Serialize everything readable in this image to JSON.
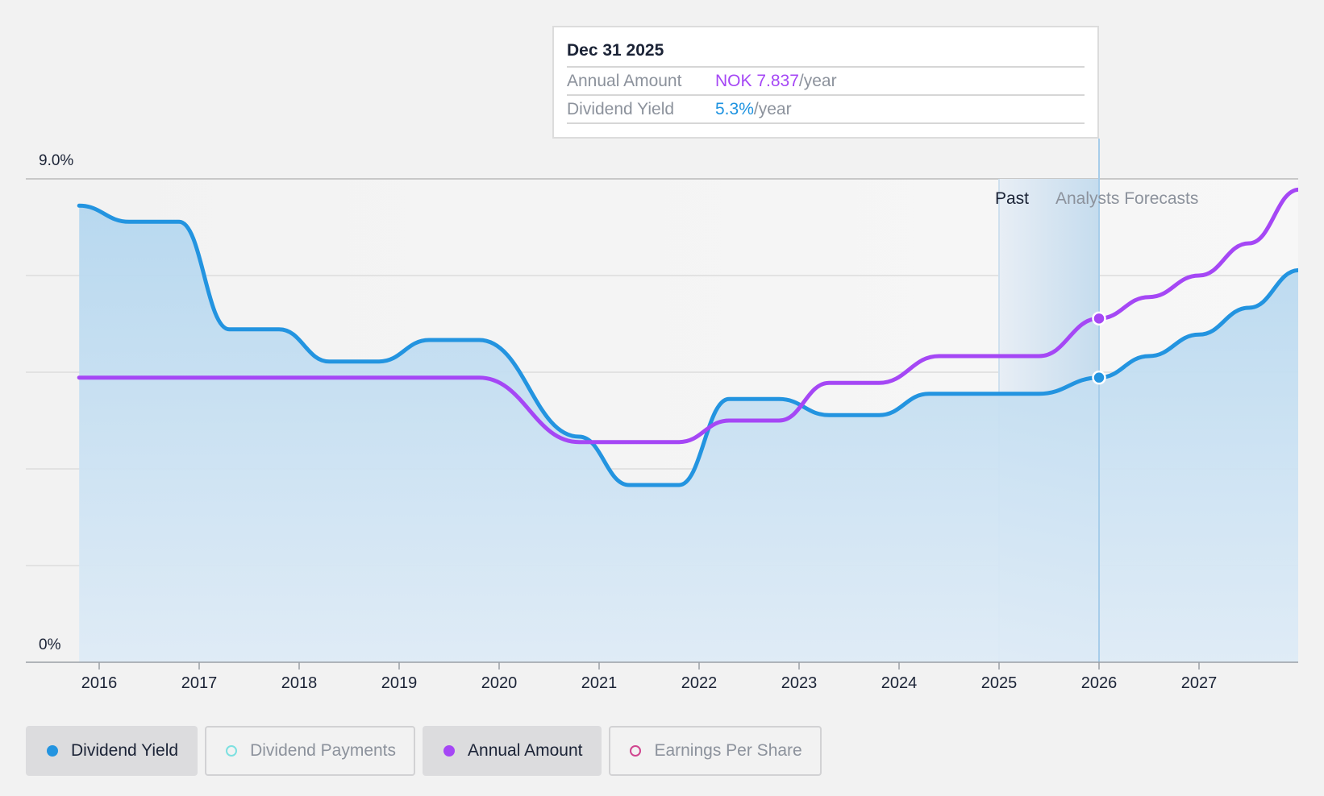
{
  "chart_data": {
    "type": "line",
    "y_axis": {
      "labels": [
        "9.0%",
        "0%"
      ],
      "ylim": [
        0,
        9.0
      ],
      "unit": "%"
    },
    "x_axis": {
      "ticks": [
        "2016",
        "2017",
        "2018",
        "2019",
        "2020",
        "2021",
        "2022",
        "2023",
        "2024",
        "2025",
        "2026",
        "2027"
      ]
    },
    "zones": {
      "past_label": "Past",
      "forecast_label": "Analysts Forecasts"
    },
    "series": [
      {
        "name": "Dividend Yield",
        "color": "#2394e0",
        "area": true,
        "x": [
          2015.8,
          2016.3,
          2016.8,
          2017.3,
          2017.8,
          2018.3,
          2018.8,
          2019.3,
          2019.8,
          2020.8,
          2021.3,
          2021.8,
          2022.3,
          2022.8,
          2023.3,
          2023.8,
          2024.3,
          2024.8,
          2025.4,
          2026.0,
          2026.5,
          2027.0,
          2027.5,
          2028.0
        ],
        "y": [
          8.5,
          8.2,
          8.2,
          6.2,
          6.2,
          5.6,
          5.6,
          6.0,
          6.0,
          4.2,
          3.3,
          3.3,
          4.9,
          4.9,
          4.6,
          4.6,
          5.0,
          5.0,
          5.0,
          5.3,
          5.7,
          6.1,
          6.6,
          7.3
        ]
      },
      {
        "name": "Annual Amount",
        "color": "#a547f5",
        "area": false,
        "x": [
          2015.8,
          2019.8,
          2020.8,
          2021.8,
          2022.3,
          2022.8,
          2023.3,
          2023.8,
          2024.4,
          2025.4,
          2026.0,
          2026.5,
          2027.0,
          2027.5,
          2028.0
        ],
        "y": [
          5.3,
          5.3,
          4.1,
          4.1,
          4.5,
          4.5,
          5.2,
          5.2,
          5.7,
          5.7,
          6.4,
          6.8,
          7.2,
          7.8,
          8.8
        ]
      }
    ],
    "highlight": {
      "x": 2026.0,
      "date_label": "Dec 31 2025"
    }
  },
  "tooltip": {
    "date": "Dec 31 2025",
    "rows": [
      {
        "key": "Annual Amount",
        "value": "NOK 7.837",
        "unit": "/year"
      },
      {
        "key": "Dividend Yield",
        "value": "5.3%",
        "unit": "/year"
      }
    ]
  },
  "legend": [
    {
      "label": "Dividend Yield",
      "color": "#2394e0",
      "active": true,
      "filled": true
    },
    {
      "label": "Dividend Payments",
      "color": "#7de0e0",
      "active": false,
      "filled": false
    },
    {
      "label": "Annual Amount",
      "color": "#a547f5",
      "active": true,
      "filled": true
    },
    {
      "label": "Earnings Per Share",
      "color": "#d0458f",
      "active": false,
      "filled": false
    }
  ]
}
